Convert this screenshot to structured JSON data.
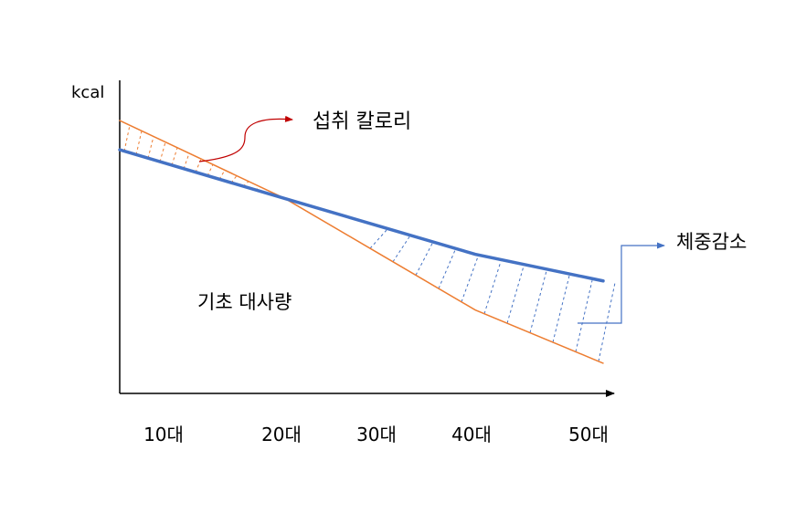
{
  "chart_data": {
    "type": "line",
    "title": "",
    "xlabel": "",
    "ylabel": "kcal",
    "categories": [
      "10대",
      "20대",
      "30대",
      "40대",
      "50대"
    ],
    "series": [
      {
        "name": "섭취 칼로리",
        "color": "#ED7D31",
        "values": [
          0.72,
          0.56,
          0.4,
          0.24,
          0.1
        ]
      },
      {
        "name": "기초 대사량",
        "color": "#4472C4",
        "values": [
          0.66,
          0.56,
          0.48,
          0.4,
          0.33
        ]
      }
    ],
    "ylim": [
      0,
      0.9
    ],
    "grid": false,
    "annotations": {
      "intake": {
        "text": "섭취 칼로리",
        "color": "#C00000"
      },
      "bmr": {
        "text": "기초 대사량"
      },
      "weight_loss": {
        "text": "체중감소",
        "color": "#4472C4"
      }
    }
  }
}
